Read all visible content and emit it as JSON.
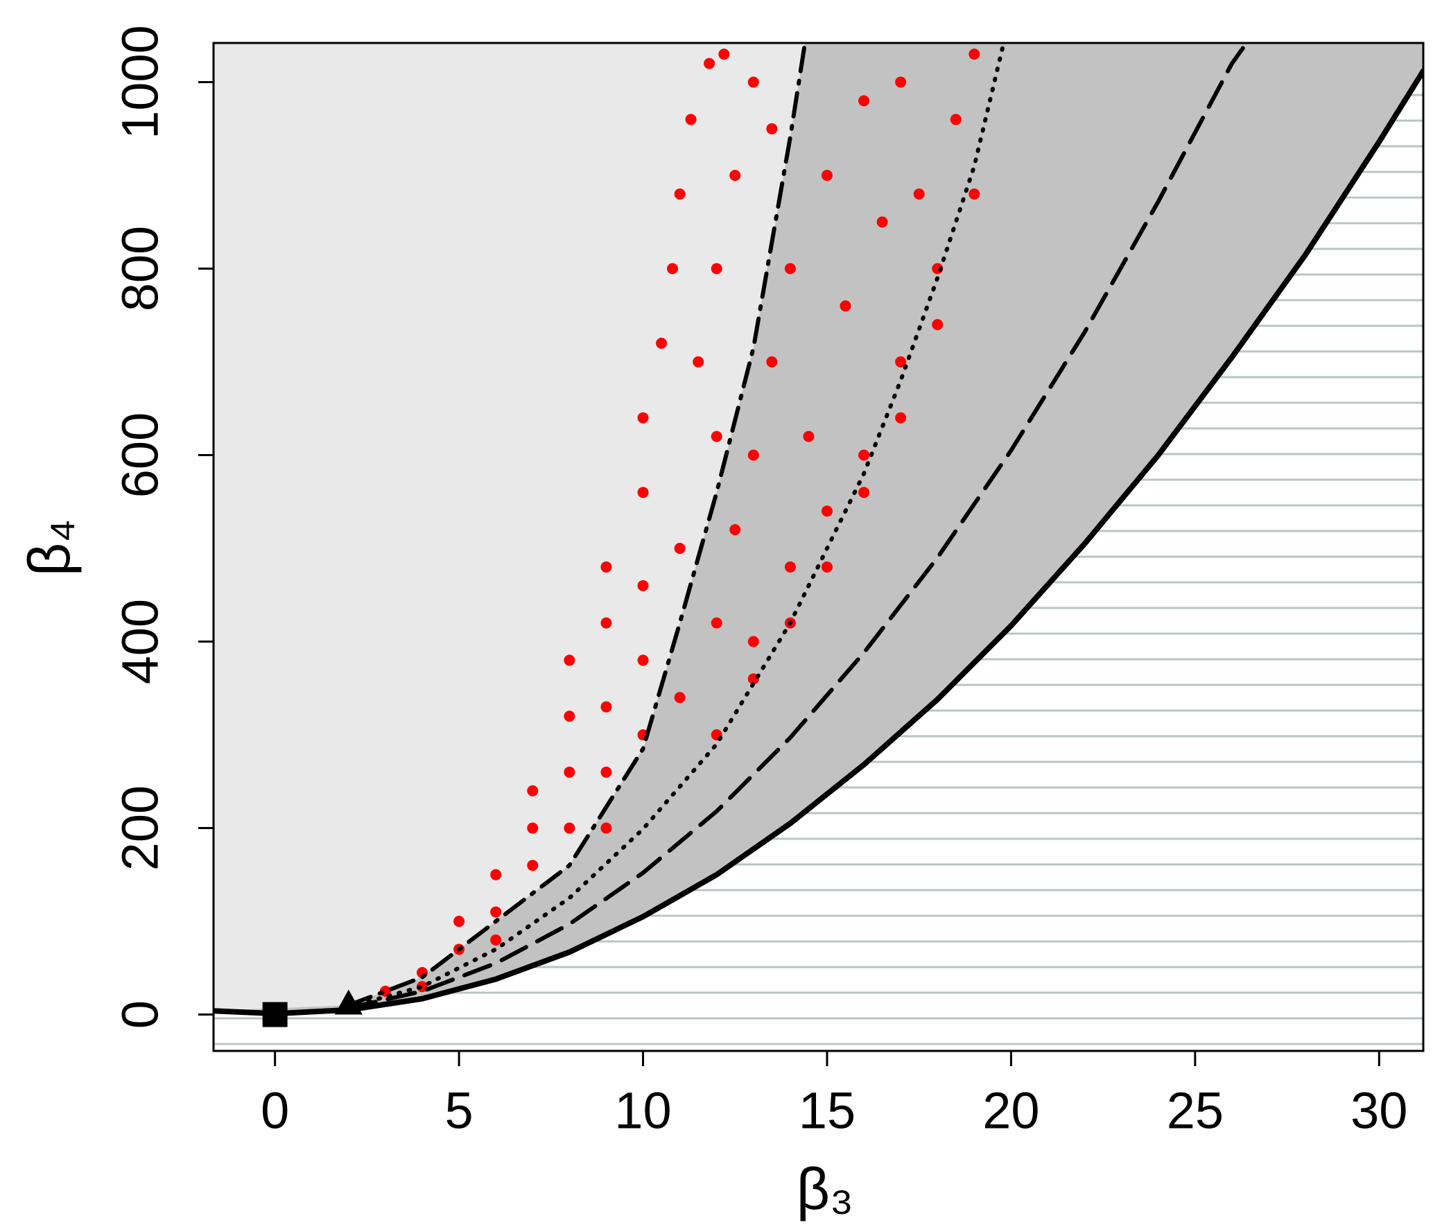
{
  "chart_data": {
    "type": "scatter",
    "x_label": "β₃",
    "y_label": "β₄",
    "xlim": [
      -1.67,
      31.2
    ],
    "ylim": [
      -39,
      1042
    ],
    "xticks": [
      0,
      5,
      10,
      15,
      20,
      25,
      30
    ],
    "yticks": [
      0,
      200,
      400,
      600,
      800,
      1000
    ],
    "background_color": "#e9e9e9",
    "shade_color": "#c2c2c2",
    "hatch_color": "#b9c4c4",
    "lines": [
      {
        "style": "solid",
        "color": "#000000",
        "x": [
          -1.7,
          0,
          2,
          4,
          6,
          8,
          10,
          12,
          14,
          16,
          18,
          20,
          22,
          24,
          26,
          28,
          30,
          31.2
        ],
        "y": [
          4,
          1,
          5,
          17,
          38,
          67,
          105,
          150,
          205,
          268,
          338,
          417,
          505,
          600,
          705,
          815,
          936,
          1012
        ]
      },
      {
        "style": "dashed",
        "color": "#000000",
        "x": [
          2,
          4,
          6,
          8,
          10,
          12,
          14,
          16,
          18,
          20,
          22,
          24,
          26,
          26.4
        ],
        "y": [
          7,
          25,
          55,
          97,
          152,
          218,
          297,
          388,
          490,
          605,
          732,
          872,
          1020,
          1042
        ]
      },
      {
        "style": "dotted",
        "color": "#000000",
        "x": [
          2,
          4,
          6,
          8,
          10,
          12,
          14,
          16,
          17,
          18,
          19,
          19.8
        ],
        "y": [
          8,
          30,
          70,
          125,
          199,
          290,
          420,
          580,
          680,
          790,
          910,
          1042
        ]
      },
      {
        "style": "dashdot",
        "color": "#000000",
        "x": [
          2,
          4,
          6,
          8,
          10,
          11,
          12,
          13,
          14,
          14.4
        ],
        "y": [
          10,
          40,
          100,
          160,
          285,
          420,
          560,
          715,
          941,
          1042
        ]
      }
    ],
    "points": {
      "color": "#ff0000",
      "x": [
        3,
        4,
        5,
        5,
        6,
        6,
        7,
        7,
        7,
        8,
        8,
        8,
        8,
        9,
        9,
        9,
        9,
        10,
        10,
        10,
        10,
        10,
        10.5,
        10.8,
        11,
        11.3,
        11.8,
        12.2,
        11.5,
        12,
        12,
        12.5,
        13,
        13.5,
        12,
        12.5,
        13,
        13,
        13.5,
        14,
        14,
        14.5,
        15,
        15,
        15.5,
        16,
        16,
        16.5,
        17,
        17,
        17.5,
        18,
        18.5,
        19,
        11,
        12,
        13,
        14,
        15,
        16,
        17,
        18,
        19,
        6,
        4,
        11,
        9
      ],
      "y": [
        25,
        45,
        70,
        100,
        110,
        150,
        160,
        200,
        240,
        200,
        260,
        320,
        380,
        260,
        330,
        420,
        480,
        300,
        380,
        460,
        560,
        640,
        720,
        800,
        880,
        960,
        1020,
        1030,
        700,
        620,
        800,
        900,
        1000,
        950,
        420,
        520,
        400,
        600,
        700,
        480,
        800,
        620,
        540,
        900,
        760,
        600,
        980,
        850,
        700,
        1000,
        880,
        800,
        960,
        1030,
        340,
        300,
        360,
        420,
        480,
        560,
        640,
        740,
        880,
        80,
        30,
        500,
        200
      ]
    },
    "markers": [
      {
        "shape": "square",
        "x": 0,
        "y": 0,
        "color": "#000000"
      },
      {
        "shape": "triangle",
        "x": 2,
        "y": 9,
        "color": "#000000"
      }
    ]
  }
}
